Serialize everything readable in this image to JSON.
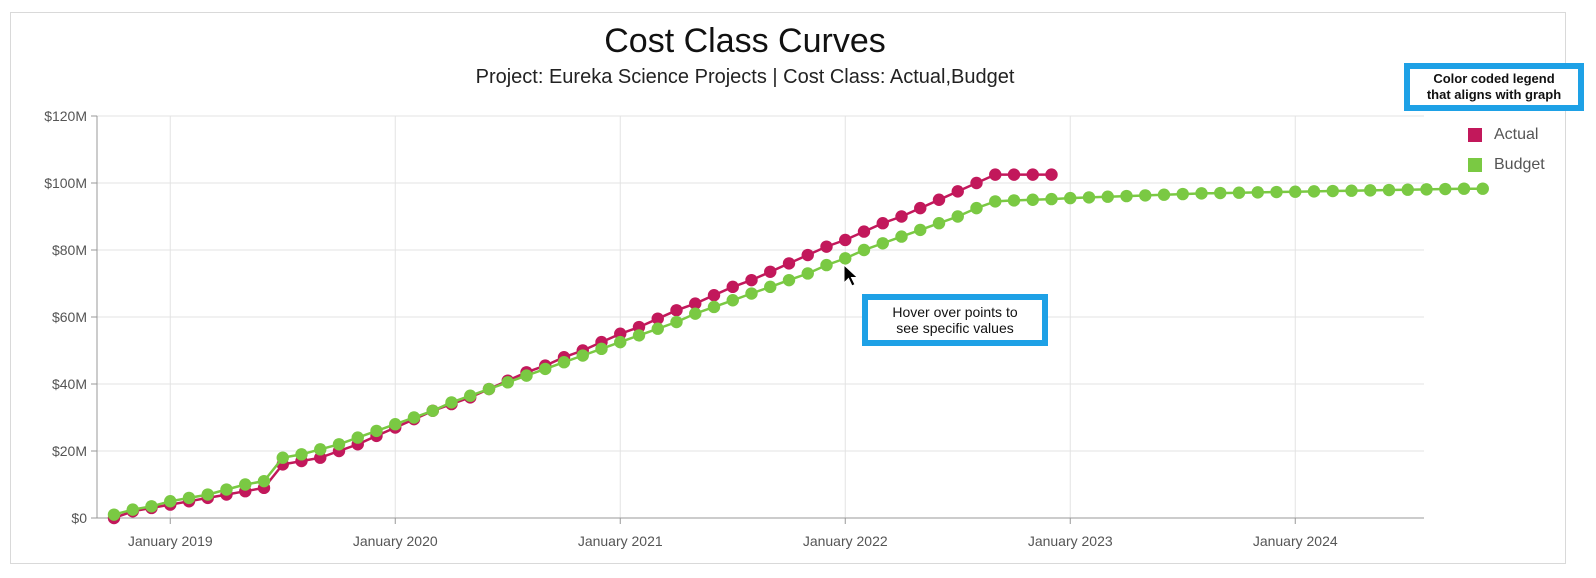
{
  "chart_data": {
    "type": "line",
    "title": "Cost Class Curves",
    "subtitle": "Project: Eureka Science Projects | Cost Class: Actual,Budget",
    "xlabel": "",
    "ylabel": "",
    "ylim": [
      0,
      120
    ],
    "y_unit": "$M",
    "y_ticks": [
      0,
      20,
      40,
      60,
      80,
      100,
      120
    ],
    "y_tick_labels": [
      "$0",
      "$20M",
      "$40M",
      "$60M",
      "$80M",
      "$100M",
      "$120M"
    ],
    "x_start_month": "2018-10",
    "x_ticks": [
      {
        "label": "January 2019",
        "month_index": 3
      },
      {
        "label": "January 2020",
        "month_index": 15
      },
      {
        "label": "January 2021",
        "month_index": 27
      },
      {
        "label": "January 2022",
        "month_index": 39
      },
      {
        "label": "January 2023",
        "month_index": 51
      },
      {
        "label": "January 2024",
        "month_index": 63
      }
    ],
    "x_range": [
      0,
      72.4
    ],
    "legend_position": "right",
    "series": [
      {
        "name": "Actual",
        "color": "#c2185b",
        "values": [
          0,
          2,
          3,
          4,
          5,
          6,
          7,
          8,
          9,
          16,
          17,
          18,
          20,
          22,
          24.5,
          27,
          29.5,
          32,
          34,
          36,
          38.5,
          41,
          43.5,
          45.5,
          48,
          50,
          52.5,
          55,
          57,
          59.5,
          62,
          64,
          66.5,
          69,
          71,
          73.5,
          76,
          78.5,
          81,
          83,
          85.5,
          88,
          90,
          92.5,
          95,
          97.5,
          100,
          102.5,
          102.5,
          102.5,
          102.5
        ]
      },
      {
        "name": "Budget",
        "color": "#7ac943",
        "values": [
          1,
          2.5,
          3.5,
          5,
          6,
          7,
          8.5,
          10,
          11,
          18,
          19,
          20.5,
          22,
          24,
          26,
          28,
          30,
          32,
          34.5,
          36.5,
          38.5,
          40.5,
          42.5,
          44.5,
          46.5,
          48.5,
          50.5,
          52.5,
          54.5,
          56.5,
          58.5,
          61,
          63,
          65,
          67,
          69,
          71,
          73,
          75.5,
          77.5,
          80,
          82,
          84,
          86,
          88,
          90,
          92.5,
          94.5,
          94.8,
          95,
          95.2,
          95.5,
          95.7,
          95.9,
          96.1,
          96.3,
          96.5,
          96.7,
          96.9,
          97,
          97.1,
          97.2,
          97.3,
          97.4,
          97.5,
          97.6,
          97.7,
          97.8,
          97.9,
          98,
          98.1,
          98.2,
          98.3,
          98.3
        ]
      }
    ]
  },
  "annotations": {
    "legend_note": [
      "Color coded legend",
      "that aligns with graph"
    ],
    "hover_note": [
      "Hover over points to",
      "see specific values"
    ]
  },
  "legend": {
    "items": [
      {
        "label": "Actual",
        "color": "#c2185b"
      },
      {
        "label": "Budget",
        "color": "#7ac943"
      }
    ]
  }
}
